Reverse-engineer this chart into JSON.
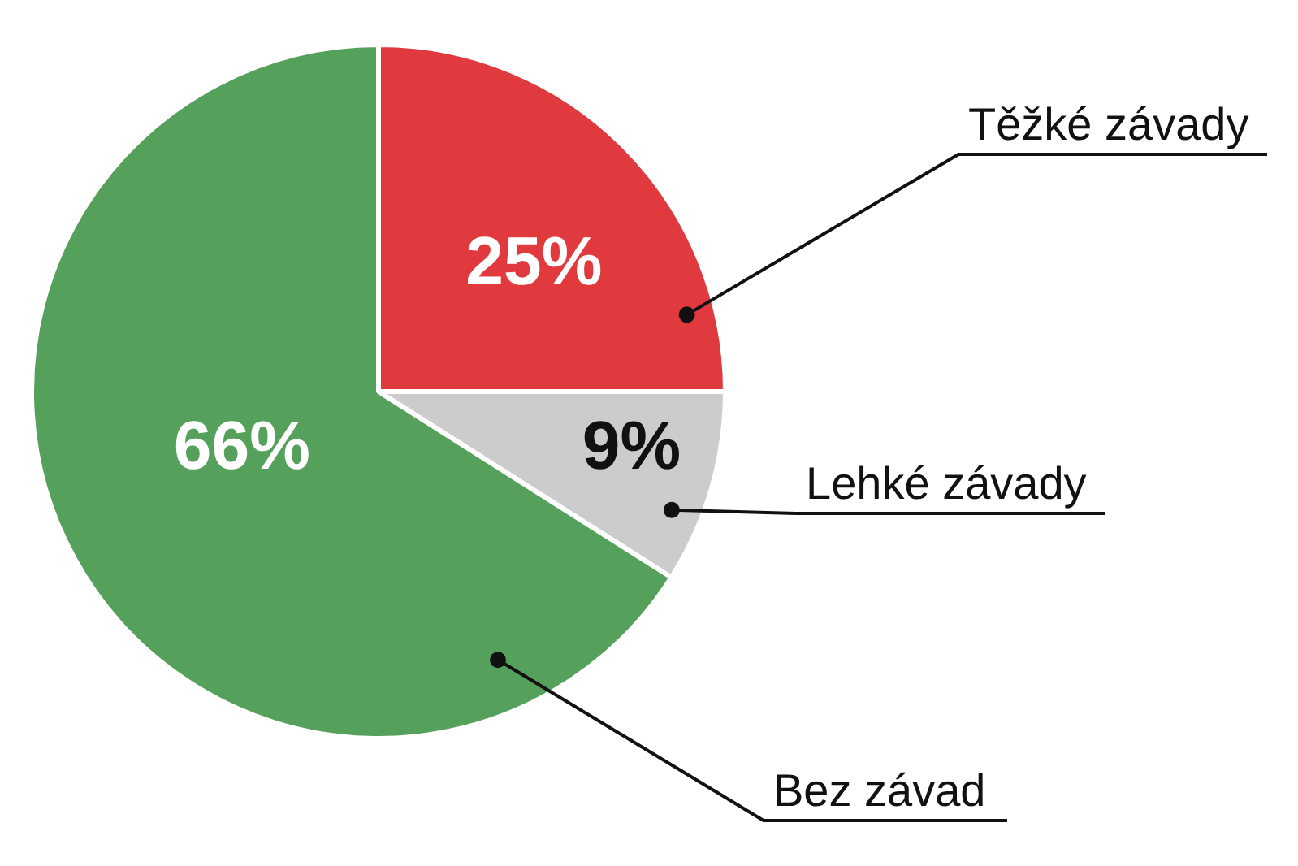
{
  "chart_data": {
    "type": "pie",
    "categories": [
      "Těžké závady",
      "Lehké závady",
      "Bez závad"
    ],
    "values": [
      25,
      9,
      66
    ],
    "colors": [
      "#e0393e",
      "#cccccc",
      "#55a05a"
    ],
    "value_labels": [
      "25%",
      "9%",
      "66%"
    ],
    "legend": false
  }
}
